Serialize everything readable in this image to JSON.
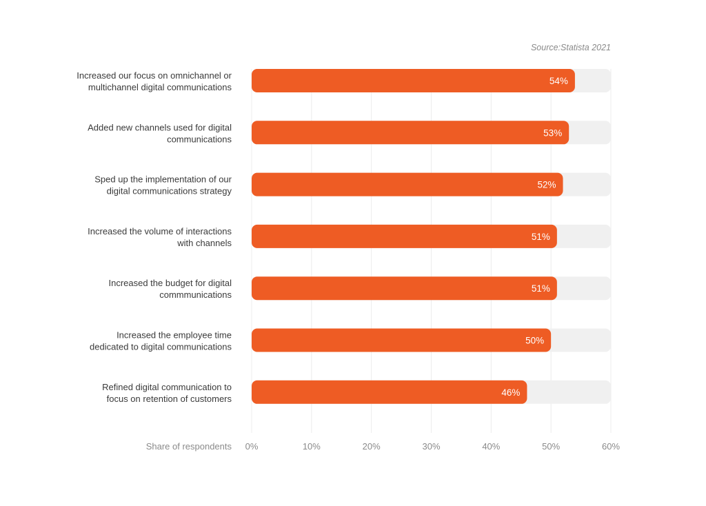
{
  "chart_data": {
    "type": "bar",
    "orientation": "horizontal",
    "source": "Source:Statista 2021",
    "xlabel": "Share of respondents",
    "categories": [
      [
        "Increased our focus on omnichannel or",
        "multichannel digital communications"
      ],
      [
        "Added new channels used for digital",
        "communications"
      ],
      [
        "Sped up the implementation of our",
        "digital communications strategy"
      ],
      [
        "Increased the volume of interactions",
        "with channels"
      ],
      [
        "Increased the budget for digital",
        "commmunications"
      ],
      [
        "Increased the employee time",
        "dedicated to digital communications"
      ],
      [
        "Refined digital communication to",
        "focus on retention of customers"
      ]
    ],
    "values": [
      54,
      53,
      52,
      51,
      51,
      50,
      46
    ],
    "value_labels": [
      "54%",
      "53%",
      "52%",
      "51%",
      "51%",
      "50%",
      "46%"
    ],
    "xlim": [
      0,
      60
    ],
    "xticks": [
      0,
      10,
      20,
      30,
      40,
      50,
      60
    ],
    "xtick_labels": [
      "0%",
      "10%",
      "20%",
      "30%",
      "40%",
      "50%",
      "60%"
    ],
    "grid": true,
    "colors": {
      "bar": "#ee5c24",
      "track": "#f0f0f0",
      "grid": "#ececec"
    }
  }
}
